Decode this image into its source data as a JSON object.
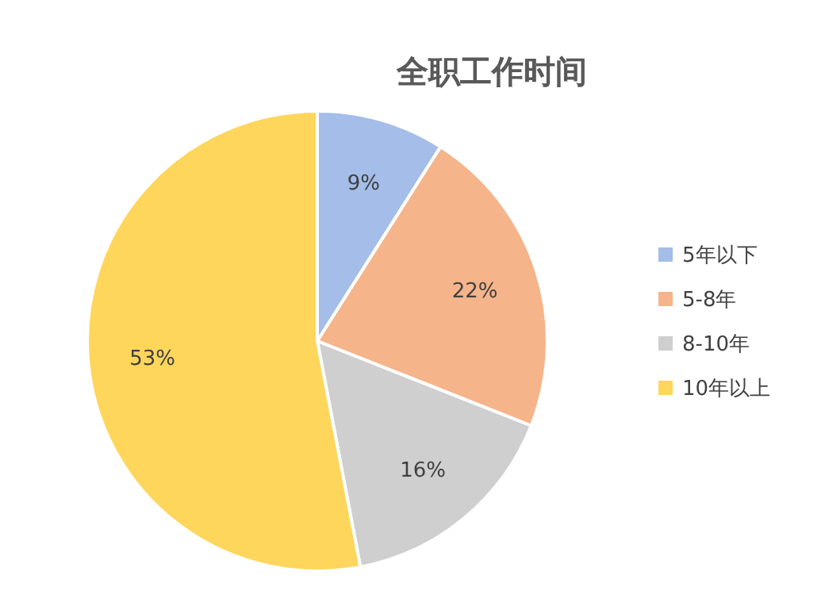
{
  "chart_data": {
    "type": "pie",
    "title": "全职工作时间",
    "categories": [
      "5年以下",
      "5-8年",
      "8-10年",
      "10年以上"
    ],
    "values": [
      9,
      22,
      16,
      53
    ],
    "colors": [
      "#a4bde9",
      "#f5b48a",
      "#cfcfcf",
      "#ffd65c"
    ],
    "value_labels": [
      "9%",
      "22%",
      "16%",
      "53%"
    ],
    "legend": "right"
  }
}
